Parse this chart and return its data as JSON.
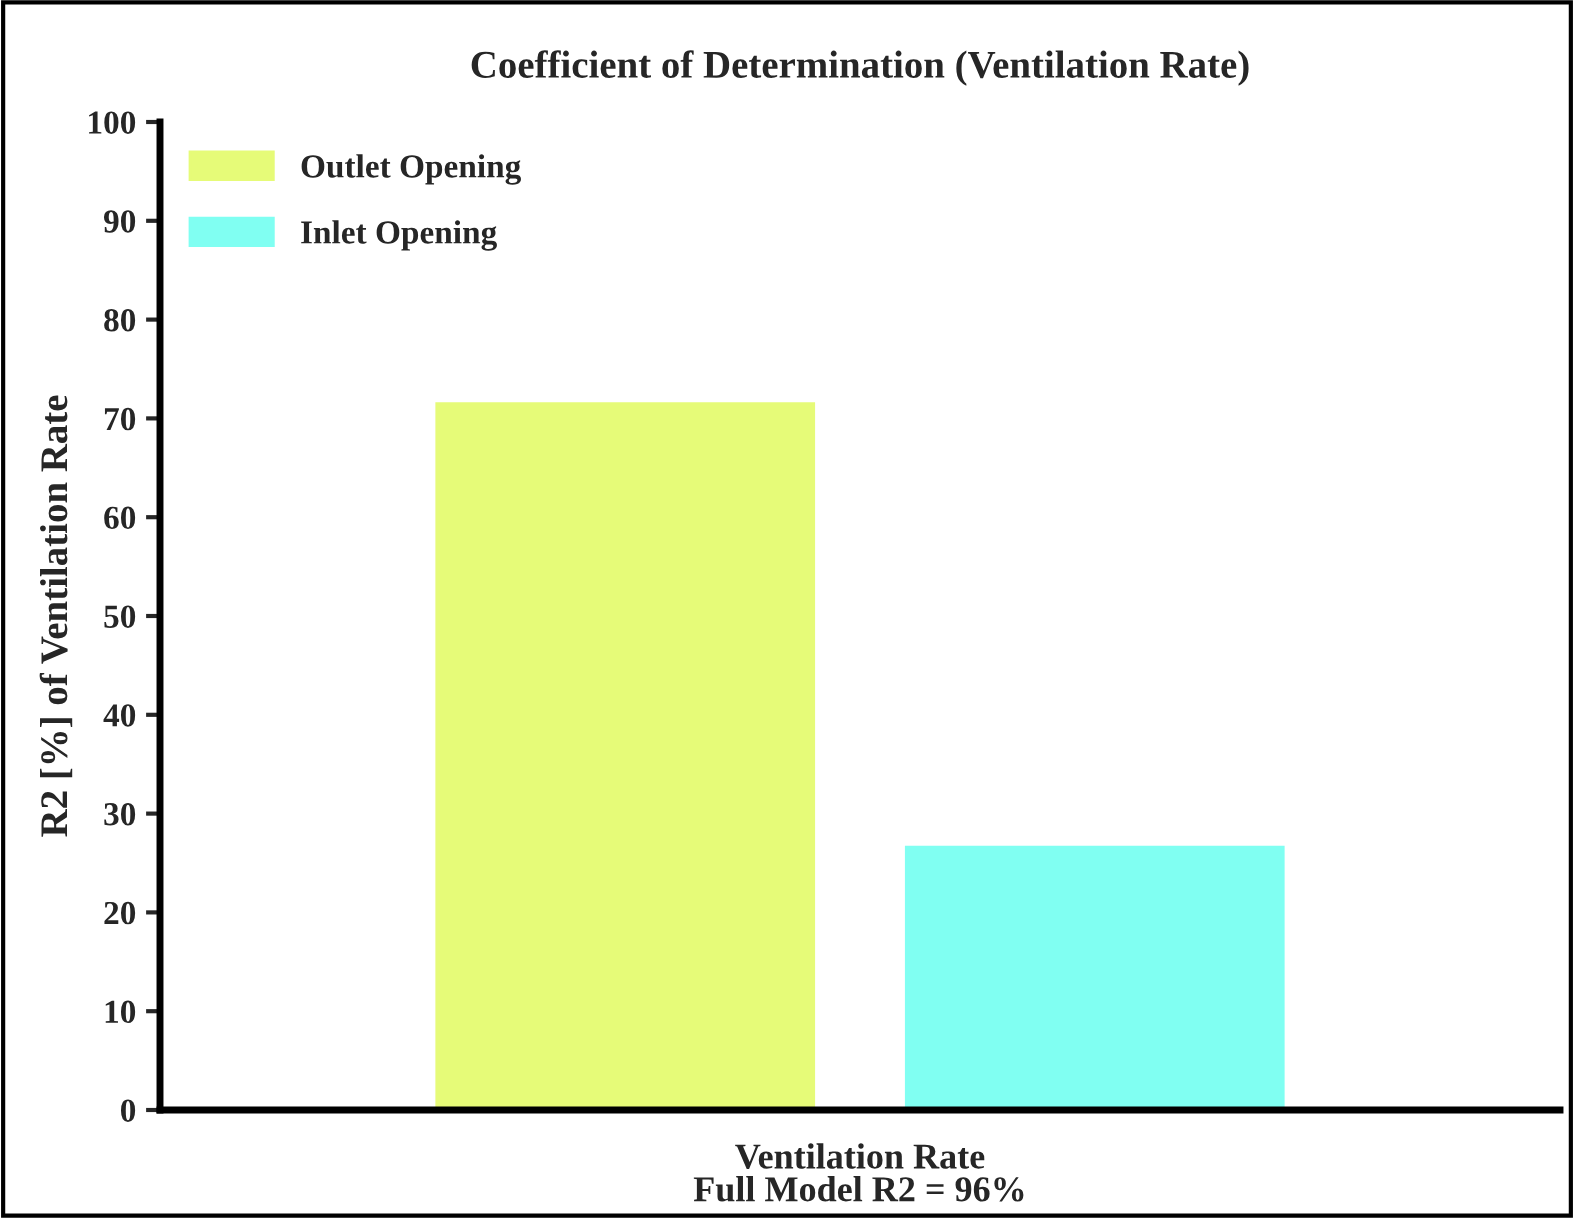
{
  "chart_data": {
    "type": "bar",
    "title": "Coefficient of Determination (Ventilation Rate)",
    "categories": [
      "Ventilation Rate"
    ],
    "xlabel": "Full Model R2 = 96%",
    "ylabel": "R2 [%] of Ventilation Rate",
    "series": [
      {
        "name": "Outlet Opening",
        "color": "#e6fb78",
        "values": [
          71.5
        ]
      },
      {
        "name": "Inlet Opening",
        "color": "#80fff2",
        "values": [
          26.6
        ]
      }
    ],
    "ylim": [
      0,
      100
    ],
    "yticks": [
      0,
      10,
      20,
      30,
      40,
      50,
      60,
      70,
      80,
      90,
      100
    ],
    "grid": false,
    "legend": "top left"
  }
}
